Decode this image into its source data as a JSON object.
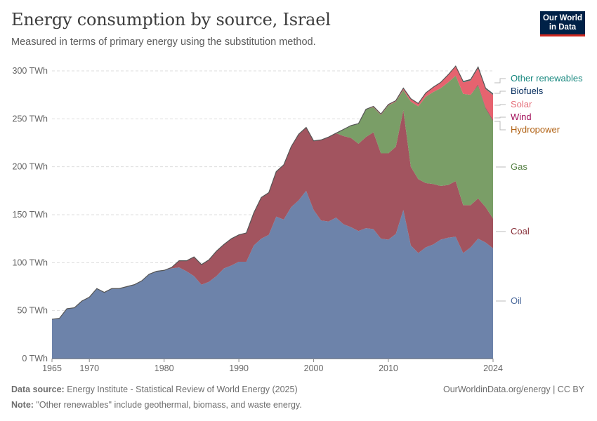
{
  "header": {
    "title": "Energy consumption by source, Israel",
    "subtitle": "Measured in terms of primary energy using the substitution method.",
    "logo_line1": "Our World",
    "logo_line2": "in Data"
  },
  "footer": {
    "source_label": "Data source:",
    "source_text": "Energy Institute - Statistical Review of World Energy (2025)",
    "note_label": "Note:",
    "note_text": "\"Other renewables\" include geothermal, biomass, and waste energy.",
    "credit": "OurWorldinData.org/energy | CC BY"
  },
  "chart_data": {
    "type": "area",
    "stacked": true,
    "title": "Energy consumption by source, Israel",
    "ylabel": "",
    "xlabel": "",
    "ylim": [
      0,
      300
    ],
    "xlim": [
      1965,
      2024
    ],
    "y_ticks": [
      {
        "value": 0,
        "label": "0 TWh"
      },
      {
        "value": 50,
        "label": "50 TWh"
      },
      {
        "value": 100,
        "label": "100 TWh"
      },
      {
        "value": 150,
        "label": "150 TWh"
      },
      {
        "value": 200,
        "label": "200 TWh"
      },
      {
        "value": 250,
        "label": "250 TWh"
      },
      {
        "value": 300,
        "label": "300 TWh"
      }
    ],
    "x_ticks": [
      {
        "value": 1965,
        "label": "1965"
      },
      {
        "value": 1970,
        "label": "1970"
      },
      {
        "value": 1980,
        "label": "1980"
      },
      {
        "value": 1990,
        "label": "1990"
      },
      {
        "value": 2000,
        "label": "2000"
      },
      {
        "value": 2010,
        "label": "2010"
      },
      {
        "value": 2024,
        "label": "2024"
      }
    ],
    "grid": true,
    "legend_position": "right",
    "x": [
      1965,
      1966,
      1967,
      1968,
      1969,
      1970,
      1971,
      1972,
      1973,
      1974,
      1975,
      1976,
      1977,
      1978,
      1979,
      1980,
      1981,
      1982,
      1983,
      1984,
      1985,
      1986,
      1987,
      1988,
      1989,
      1990,
      1991,
      1992,
      1993,
      1994,
      1995,
      1996,
      1997,
      1998,
      1999,
      2000,
      2001,
      2002,
      2003,
      2004,
      2005,
      2006,
      2007,
      2008,
      2009,
      2010,
      2011,
      2012,
      2013,
      2014,
      2015,
      2016,
      2017,
      2018,
      2019,
      2020,
      2021,
      2022,
      2023,
      2024
    ],
    "series": [
      {
        "name": "Oil",
        "color": "#6d83aa",
        "label_color": "#4c6a9c",
        "values": [
          41,
          42,
          52,
          53,
          60,
          64,
          73,
          69,
          73,
          73,
          75,
          77,
          81,
          88,
          91,
          92,
          94,
          95,
          91,
          86,
          77,
          80,
          86,
          94,
          97,
          101,
          101,
          118,
          125,
          129,
          148,
          145,
          158,
          165,
          175,
          155,
          144,
          143,
          147,
          140,
          137,
          133,
          136,
          135,
          125,
          124,
          130,
          155,
          118,
          110,
          116,
          119,
          124,
          126,
          127,
          110,
          116,
          125,
          121,
          115
        ]
      },
      {
        "name": "Coal",
        "color": "#a2545f",
        "label_color": "#883039",
        "values": [
          0,
          0,
          0,
          0,
          0,
          0,
          0,
          0,
          0,
          0,
          0,
          0,
          0,
          0,
          0,
          0,
          1,
          7,
          11,
          20,
          21,
          23,
          26,
          25,
          28,
          28,
          30,
          34,
          43,
          44,
          47,
          57,
          63,
          69,
          66,
          72,
          84,
          88,
          88,
          92,
          93,
          91,
          95,
          101,
          89,
          90,
          91,
          104,
          82,
          77,
          67,
          63,
          56,
          55,
          58,
          50,
          44,
          42,
          37,
          31
        ]
      },
      {
        "name": "Gas",
        "color": "#7a9e67",
        "label_color": "#578145",
        "values": [
          0,
          0,
          0,
          0,
          0,
          0,
          0,
          0,
          0,
          0,
          0,
          0,
          0,
          0,
          0,
          0,
          0,
          0,
          0,
          0,
          0,
          0,
          0,
          0,
          0,
          0,
          0,
          0,
          0,
          0,
          0,
          0,
          0,
          0,
          0,
          0,
          0,
          0,
          0,
          7,
          13,
          21,
          29,
          26,
          40,
          50,
          47,
          21,
          68,
          76,
          90,
          96,
          102,
          107,
          110,
          116,
          115,
          118,
          103,
          102
        ]
      },
      {
        "name": "Hydropower",
        "color": "#bf8a3f",
        "label_color": "#b16214",
        "values": [
          0,
          0,
          0,
          0,
          0,
          0,
          0,
          0,
          0,
          0,
          0,
          0,
          0,
          0,
          0,
          0,
          0,
          0,
          0,
          0,
          0,
          0,
          0,
          0,
          0,
          0,
          0,
          0,
          0,
          0,
          0,
          0,
          0,
          0,
          0,
          0,
          0,
          0,
          0,
          0,
          0,
          0,
          0,
          0,
          0,
          0,
          0,
          0,
          0,
          0,
          0,
          0,
          0,
          0,
          0,
          0,
          0,
          0,
          0,
          0
        ]
      },
      {
        "name": "Wind",
        "color": "#a32a56",
        "label_color": "#a2105a",
        "values": [
          0,
          0,
          0,
          0,
          0,
          0,
          0,
          0,
          0,
          0,
          0,
          0,
          0,
          0,
          0,
          0,
          0,
          0,
          0,
          0,
          0,
          0,
          0,
          0,
          0,
          0,
          0,
          0,
          0,
          0,
          0,
          0,
          0,
          0,
          0,
          0,
          0,
          0,
          0,
          0,
          0,
          0,
          0,
          0,
          0,
          0,
          0,
          0,
          0,
          0,
          0,
          0,
          0,
          0,
          0,
          0,
          0,
          1,
          1,
          1
        ]
      },
      {
        "name": "Solar",
        "color": "#e6636f",
        "label_color": "#e56e79",
        "values": [
          0,
          0,
          0,
          0,
          0,
          0,
          0,
          0,
          0,
          0,
          0,
          0,
          0,
          0,
          0,
          0,
          0,
          0,
          0,
          0,
          0,
          0,
          0,
          0,
          0,
          0,
          0,
          0,
          0,
          0,
          0,
          0,
          0,
          0,
          0,
          0,
          0,
          0,
          0,
          0,
          0,
          0,
          0,
          1,
          1,
          1,
          1,
          2,
          3,
          3,
          4,
          5,
          6,
          8,
          10,
          12,
          15,
          17,
          19,
          26
        ]
      },
      {
        "name": "Biofuels",
        "color": "#203a64",
        "label_color": "#00295b",
        "values": [
          0,
          0,
          0,
          0,
          0,
          0,
          0,
          0,
          0,
          0,
          0,
          0,
          0,
          0,
          0,
          0,
          0,
          0,
          0,
          0,
          0,
          0,
          0,
          0,
          0,
          0,
          0,
          0,
          0,
          0,
          0,
          0,
          0,
          0,
          0,
          0,
          0,
          0,
          0,
          0,
          0,
          0,
          0,
          0,
          0,
          0,
          0,
          0,
          0,
          0,
          0,
          0,
          0,
          0,
          0,
          0,
          0,
          0,
          0,
          0
        ]
      },
      {
        "name": "Other renewables",
        "color": "#2f8a85",
        "label_color": "#18887f",
        "values": [
          0,
          0,
          0,
          0,
          0,
          0,
          0,
          0,
          0,
          0,
          0,
          0,
          0,
          0,
          0,
          0,
          0,
          0,
          0,
          0,
          0,
          0,
          0,
          0,
          0,
          0,
          0,
          0,
          0,
          0,
          0,
          0,
          0,
          0,
          0,
          0,
          0,
          0,
          0,
          0,
          0,
          0,
          0,
          0,
          0,
          0,
          0,
          0,
          0,
          0,
          0,
          0,
          0,
          0,
          0,
          1,
          1,
          1,
          1,
          1
        ]
      }
    ]
  }
}
